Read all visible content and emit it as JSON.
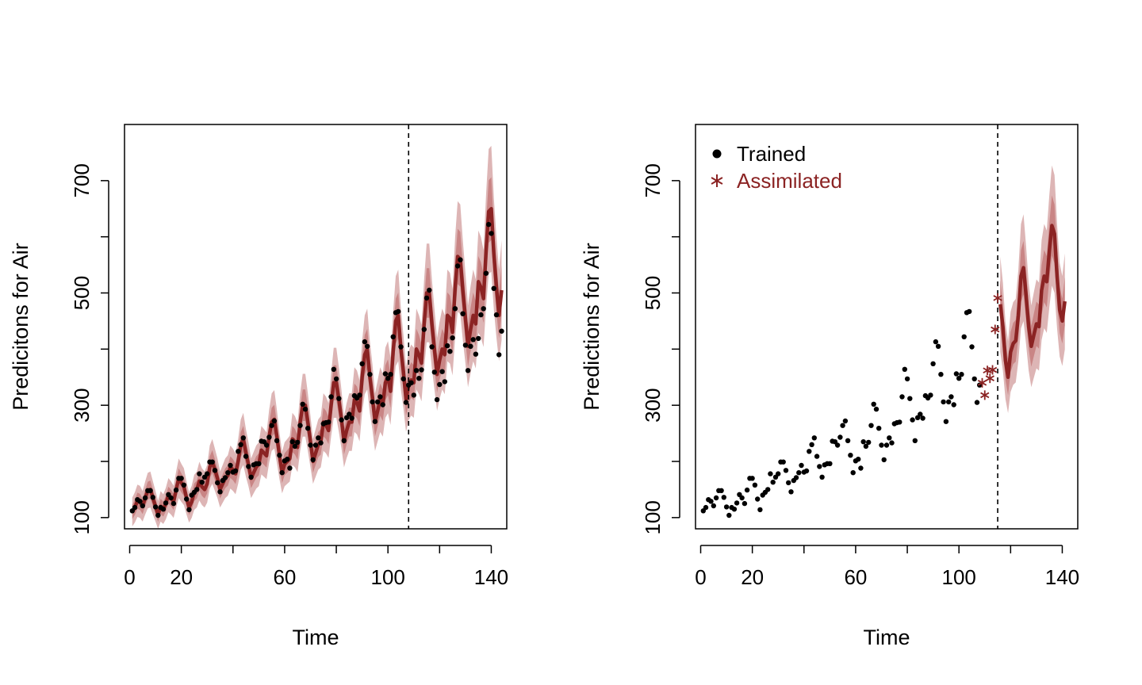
{
  "colors": {
    "accent": "#8B2323",
    "band_outer": "#DDB5B5",
    "band_inner": "#C98585",
    "points": "#000000",
    "axis": "#000000"
  },
  "chart_data": [
    {
      "type": "line",
      "panel": "left",
      "xlabel": "Time",
      "ylabel": "Predicitons for Air",
      "xlim": [
        -2,
        146
      ],
      "ylim": [
        80,
        800
      ],
      "xticks": [
        0,
        20,
        60,
        100,
        140
      ],
      "xminor": [
        40,
        80,
        120
      ],
      "yticks": [
        100,
        300,
        500,
        700
      ],
      "yminor": [
        200,
        400,
        600
      ],
      "split_x": 108,
      "legend": null,
      "grid": false,
      "series": [
        {
          "role": "median",
          "color": "#8B2323",
          "x_start": 1,
          "values": [
            110,
            118,
            130,
            128,
            120,
            135,
            148,
            150,
            135,
            120,
            105,
            120,
            115,
            125,
            140,
            135,
            128,
            150,
            170,
            162,
            155,
            135,
            118,
            128,
            145,
            150,
            165,
            155,
            150,
            160,
            190,
            200,
            185,
            170,
            150,
            160,
            170,
            175,
            190,
            185,
            178,
            200,
            230,
            240,
            215,
            195,
            170,
            180,
            190,
            195,
            220,
            215,
            210,
            245,
            270,
            275,
            245,
            210,
            180,
            195,
            200,
            205,
            240,
            235,
            225,
            270,
            300,
            300,
            270,
            235,
            200,
            215,
            230,
            235,
            270,
            265,
            255,
            300,
            340,
            340,
            310,
            275,
            235,
            255,
            270,
            270,
            310,
            305,
            290,
            350,
            390,
            400,
            350,
            315,
            270,
            290,
            310,
            300,
            340,
            350,
            325,
            395,
            450,
            460,
            400,
            360,
            310,
            335,
            345,
            340,
            400,
            390,
            375,
            445,
            500,
            500,
            445,
            400,
            355,
            380,
            400,
            390,
            460,
            455,
            430,
            510,
            565,
            560,
            505,
            455,
            405,
            435,
            460,
            445,
            520,
            510,
            490,
            575,
            645,
            650,
            570,
            510,
            460,
            505
          ]
        },
        {
          "role": "observed",
          "color": "#000000",
          "x_start": 1,
          "values": [
            112,
            118,
            132,
            129,
            121,
            135,
            148,
            148,
            136,
            119,
            104,
            118,
            115,
            126,
            141,
            135,
            125,
            149,
            170,
            170,
            158,
            133,
            114,
            140,
            145,
            150,
            178,
            163,
            172,
            178,
            199,
            199,
            184,
            162,
            146,
            166,
            171,
            180,
            193,
            181,
            183,
            218,
            230,
            242,
            209,
            191,
            172,
            194,
            196,
            196,
            236,
            235,
            229,
            243,
            264,
            272,
            237,
            211,
            180,
            201,
            204,
            188,
            235,
            227,
            234,
            264,
            302,
            293,
            259,
            229,
            203,
            229,
            242,
            233,
            267,
            269,
            270,
            315,
            364,
            347,
            312,
            274,
            237,
            278,
            284,
            277,
            317,
            313,
            318,
            374,
            413,
            405,
            355,
            306,
            271,
            306,
            315,
            301,
            356,
            348,
            355,
            422,
            465,
            467,
            404,
            347,
            305,
            336,
            340,
            318,
            362,
            348,
            363,
            435,
            491,
            505,
            404,
            359,
            310,
            337,
            360,
            342,
            406,
            396,
            420,
            472,
            548,
            559,
            463,
            407,
            362,
            405,
            417,
            391,
            419,
            461,
            472,
            535,
            622,
            606,
            508,
            461,
            390,
            432
          ]
        }
      ]
    },
    {
      "type": "scatter",
      "panel": "right",
      "xlabel": "Time",
      "ylabel": "Predictions for Air",
      "xlim": [
        -2,
        146
      ],
      "ylim": [
        80,
        800
      ],
      "xticks": [
        0,
        20,
        60,
        100,
        140
      ],
      "xminor": [
        40,
        80,
        120
      ],
      "yticks": [
        100,
        300,
        500,
        700
      ],
      "yminor": [
        200,
        400,
        600
      ],
      "split_x": 115,
      "legend": {
        "position": "top-left",
        "entries": [
          {
            "label": "Trained",
            "marker": "circle",
            "color": "#000000"
          },
          {
            "label": "Assimilated",
            "marker": "asterisk",
            "color": "#8B2323"
          }
        ]
      },
      "grid": false,
      "series": [
        {
          "name": "Trained",
          "marker": "circle",
          "color": "#000000",
          "x_start": 1,
          "values": [
            112,
            118,
            132,
            129,
            121,
            135,
            148,
            148,
            136,
            119,
            104,
            118,
            115,
            126,
            141,
            135,
            125,
            149,
            170,
            170,
            158,
            133,
            114,
            140,
            145,
            150,
            178,
            163,
            172,
            178,
            199,
            199,
            184,
            162,
            146,
            166,
            171,
            180,
            193,
            181,
            183,
            218,
            230,
            242,
            209,
            191,
            172,
            194,
            196,
            196,
            236,
            235,
            229,
            243,
            264,
            272,
            237,
            211,
            180,
            201,
            204,
            188,
            235,
            227,
            234,
            264,
            302,
            293,
            259,
            229,
            203,
            229,
            242,
            233,
            267,
            269,
            270,
            315,
            364,
            347,
            312,
            274,
            237,
            278,
            284,
            277,
            317,
            313,
            318,
            374,
            413,
            405,
            355,
            306,
            271,
            306,
            315,
            301,
            356,
            348,
            355,
            422,
            465,
            467,
            404,
            347,
            305,
            336
          ]
        },
        {
          "name": "Assimilated",
          "marker": "asterisk",
          "color": "#8B2323",
          "x_start": 109,
          "values": [
            340,
            318,
            362,
            348,
            363,
            435,
            491
          ]
        },
        {
          "role": "forecast_median",
          "color": "#8B2323",
          "x_start": 116,
          "values": [
            480,
            440,
            380,
            350,
            395,
            410,
            415,
            460,
            530,
            545,
            495,
            440,
            405,
            425,
            445,
            440,
            505,
            530,
            520,
            575,
            620,
            605,
            530,
            470,
            450,
            485
          ]
        }
      ]
    }
  ]
}
